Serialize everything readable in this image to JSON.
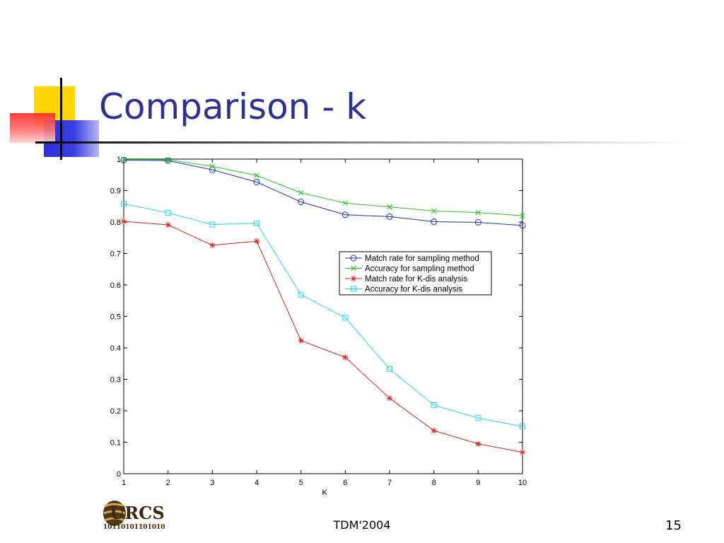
{
  "slide": {
    "title": "Comparison - k",
    "footer_center": "TDM'2004",
    "page_number": "15",
    "logo_text": "URCS",
    "logo_binary": "1011010110101010"
  },
  "chart_data": {
    "type": "line",
    "title": "",
    "xlabel": "K",
    "ylabel": "",
    "x": [
      1,
      2,
      3,
      4,
      5,
      6,
      7,
      8,
      9,
      10
    ],
    "xlim": [
      1,
      10
    ],
    "ylim": [
      0,
      1
    ],
    "xticks": [
      1,
      2,
      3,
      4,
      5,
      6,
      7,
      8,
      9,
      10
    ],
    "yticks": [
      0,
      0.1,
      0.2,
      0.3,
      0.4,
      0.5,
      0.6,
      0.7,
      0.8,
      0.9,
      1
    ],
    "grid": false,
    "legend_position": "upper-right",
    "series": [
      {
        "name": "Match rate for sampling method",
        "color": "#1f2dbf",
        "marker": "circle",
        "values": [
          0.997,
          0.995,
          0.966,
          0.927,
          0.864,
          0.823,
          0.817,
          0.801,
          0.799,
          0.789
        ]
      },
      {
        "name": "Accuracy for sampling method",
        "color": "#1fc81f",
        "marker": "x",
        "values": [
          0.999,
          0.998,
          0.977,
          0.948,
          0.893,
          0.86,
          0.848,
          0.835,
          0.83,
          0.82
        ]
      },
      {
        "name": "Match rate for K-dis analysis",
        "color": "#e0201f",
        "marker": "star",
        "values": [
          0.802,
          0.791,
          0.726,
          0.739,
          0.423,
          0.37,
          0.24,
          0.137,
          0.095,
          0.068
        ]
      },
      {
        "name": "Accuracy for K-dis analysis",
        "color": "#1fd8e6",
        "marker": "square",
        "values": [
          0.858,
          0.829,
          0.792,
          0.796,
          0.569,
          0.496,
          0.333,
          0.218,
          0.177,
          0.15
        ]
      }
    ]
  }
}
